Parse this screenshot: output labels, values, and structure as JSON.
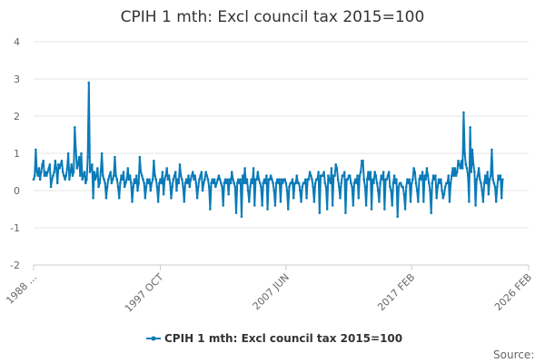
{
  "source_label": "Source:",
  "chart_data": {
    "type": "line",
    "title": "CPIH 1 mth: Excl council tax 2015=100",
    "xlabel": "",
    "ylabel": "",
    "ylim": [
      -2,
      4
    ],
    "y_ticks": [
      "-2",
      "-1",
      "0",
      "1",
      "2",
      "3",
      "4"
    ],
    "x_tick_labels": [
      "1988 ...",
      "1997 OCT",
      "2007 JUN",
      "2017 FEB",
      "2026 FEB"
    ],
    "x_tick_months": [
      0,
      117,
      233,
      349,
      457
    ],
    "legend": {
      "label": "CPIH 1 mth: Excl council tax 2015=100",
      "position": "bottom-center"
    },
    "series": [
      {
        "name": "CPIH 1 mth: Excl council tax 2015=100",
        "color": "#0b7bb8",
        "start": "1988-01",
        "values": [
          0.3,
          0.4,
          1.1,
          0.5,
          0.4,
          0.6,
          0.3,
          0.5,
          0.7,
          0.8,
          0.4,
          0.5,
          0.4,
          0.5,
          0.6,
          0.7,
          0.1,
          0.3,
          0.4,
          0.5,
          0.8,
          0.6,
          0.2,
          0.7,
          0.6,
          0.7,
          0.8,
          0.5,
          0.4,
          0.3,
          0.4,
          0.6,
          1.0,
          0.3,
          0.5,
          0.7,
          0.4,
          0.5,
          1.7,
          1.1,
          0.6,
          0.7,
          0.9,
          0.4,
          1.0,
          0.3,
          0.4,
          0.5,
          0.2,
          0.3,
          0.9,
          2.9,
          0.5,
          0.6,
          0.7,
          -0.2,
          0.5,
          0.3,
          0.4,
          0.6,
          0.1,
          0.2,
          0.5,
          1.0,
          0.4,
          0.3,
          0.2,
          -0.2,
          0.1,
          0.3,
          0.4,
          0.5,
          0.2,
          0.3,
          0.4,
          0.9,
          0.4,
          0.3,
          0.1,
          -0.2,
          0.2,
          0.4,
          0.3,
          0.5,
          0.1,
          0.2,
          0.3,
          0.6,
          0.3,
          0.4,
          0.2,
          -0.3,
          0.1,
          0.3,
          0.2,
          0.4,
          0.0,
          0.2,
          0.9,
          0.5,
          0.4,
          0.3,
          0.2,
          -0.2,
          0.1,
          0.3,
          0.2,
          0.3,
          0.0,
          0.2,
          0.3,
          0.8,
          0.4,
          0.3,
          0.1,
          -0.3,
          0.2,
          0.3,
          0.2,
          0.5,
          -0.1,
          0.3,
          0.4,
          0.6,
          0.3,
          0.4,
          0.2,
          -0.2,
          0.1,
          0.3,
          0.4,
          0.5,
          0.0,
          0.3,
          0.2,
          0.7,
          0.4,
          0.3,
          0.1,
          -0.3,
          0.2,
          0.3,
          0.2,
          0.4,
          0.1,
          0.3,
          0.4,
          0.5,
          0.3,
          0.4,
          0.2,
          -0.2,
          0.1,
          0.3,
          0.4,
          0.5,
          0.0,
          0.2,
          0.3,
          0.5,
          0.4,
          0.3,
          0.1,
          -0.5,
          0.2,
          0.3,
          0.2,
          0.3,
          0.1,
          0.2,
          0.3,
          0.4,
          0.3,
          0.2,
          0.1,
          -0.4,
          0.2,
          0.3,
          0.2,
          0.3,
          -0.1,
          0.3,
          0.2,
          0.5,
          0.3,
          0.2,
          0.1,
          -0.6,
          0.2,
          0.3,
          0.2,
          0.3,
          -0.7,
          0.4,
          0.2,
          0.6,
          0.2,
          0.3,
          0.0,
          -0.3,
          0.1,
          0.3,
          0.2,
          0.6,
          -0.4,
          0.3,
          0.3,
          0.5,
          0.3,
          0.2,
          0.1,
          -0.4,
          0.2,
          0.3,
          0.2,
          0.4,
          -0.5,
          0.3,
          0.3,
          0.4,
          0.3,
          0.2,
          0.0,
          -0.4,
          0.2,
          0.3,
          0.2,
          0.3,
          -0.3,
          0.3,
          0.2,
          0.3,
          0.3,
          0.2,
          0.0,
          -0.5,
          0.1,
          0.2,
          0.2,
          0.3,
          -0.2,
          0.2,
          0.2,
          0.4,
          0.2,
          0.2,
          0.0,
          -0.3,
          0.1,
          0.2,
          0.2,
          0.3,
          -0.2,
          0.3,
          0.3,
          0.5,
          0.4,
          0.3,
          0.1,
          -0.3,
          0.2,
          0.3,
          0.3,
          0.5,
          -0.6,
          0.4,
          0.4,
          0.4,
          0.5,
          0.2,
          0.1,
          -0.5,
          0.4,
          0.3,
          0.2,
          0.6,
          -0.4,
          0.4,
          0.4,
          0.7,
          0.6,
          0.3,
          0.1,
          -0.2,
          0.2,
          0.4,
          0.4,
          0.5,
          -0.6,
          0.3,
          0.3,
          0.4,
          0.4,
          0.2,
          0.1,
          -0.4,
          0.2,
          0.3,
          0.2,
          0.4,
          -0.2,
          0.4,
          0.5,
          0.8,
          0.8,
          0.3,
          0.1,
          -0.4,
          0.3,
          0.5,
          0.3,
          0.5,
          -0.5,
          0.3,
          0.2,
          0.5,
          0.4,
          0.2,
          0.0,
          -0.3,
          0.2,
          0.4,
          0.3,
          0.5,
          -0.5,
          0.3,
          0.3,
          0.4,
          0.5,
          0.1,
          0.0,
          -0.4,
          0.2,
          0.4,
          0.2,
          0.3,
          -0.7,
          0.1,
          0.2,
          0.2,
          0.1,
          0.1,
          -0.1,
          -0.5,
          0.1,
          0.3,
          0.2,
          0.3,
          -0.3,
          0.2,
          0.3,
          0.6,
          0.5,
          0.2,
          0.0,
          -0.3,
          0.3,
          0.4,
          0.3,
          0.5,
          -0.3,
          0.4,
          0.3,
          0.6,
          0.4,
          0.2,
          0.0,
          -0.6,
          0.2,
          0.4,
          0.3,
          0.4,
          -0.2,
          0.1,
          0.3,
          0.2,
          0.3,
          0.0,
          -0.2,
          -0.1,
          0.1,
          0.2,
          0.2,
          0.4,
          -0.3,
          0.2,
          0.4,
          0.6,
          0.4,
          0.6,
          0.4,
          0.5,
          0.8,
          0.7,
          0.6,
          0.8,
          0.6,
          2.1,
          1.0,
          0.7,
          0.6,
          0.4,
          -0.3,
          1.7,
          0.5,
          1.1,
          0.7,
          0.5,
          -0.4,
          0.3,
          0.4,
          0.6,
          0.3,
          0.2,
          0.0,
          -0.3,
          0.2,
          0.4,
          0.2,
          0.5,
          -0.1,
          0.3,
          0.4,
          1.1,
          0.3,
          0.2,
          0.1,
          -0.3,
          0.1,
          0.4,
          0.3,
          0.4,
          -0.2,
          0.3
        ]
      }
    ]
  }
}
